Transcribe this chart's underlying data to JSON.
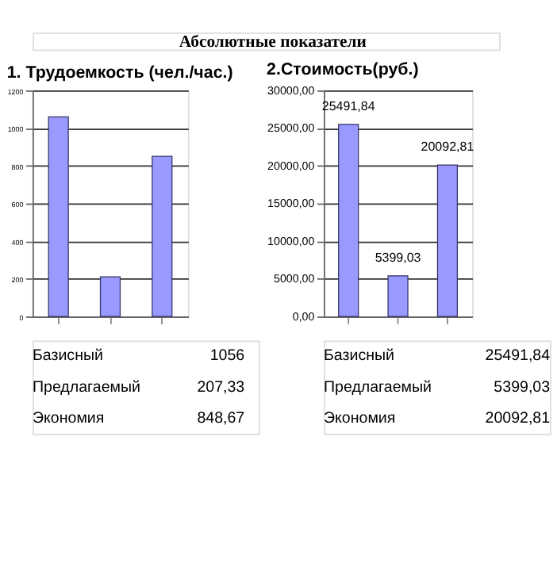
{
  "chart_data": [
    {
      "type": "bar",
      "title": "1. Трудоемкость (чел./час.)",
      "annotations": [
        "Абсолютные показатели"
      ],
      "categories": [
        null,
        null,
        null
      ],
      "values": [
        1060,
        210,
        850
      ],
      "color": "#9999ff",
      "ylim": [
        0,
        1200
      ],
      "yticks": [
        0,
        200,
        400,
        600,
        800,
        1000,
        1200
      ],
      "grid": "y"
    },
    {
      "type": "bar",
      "title": "2.Стоимость(руб.)",
      "categories": [
        null,
        null,
        null
      ],
      "values": [
        25491.84,
        5399.03,
        20092.81
      ],
      "value_labels": [
        "25491,84",
        "5399,03",
        "20092,81"
      ],
      "color": "#9999ff",
      "ylim": [
        0,
        30000
      ],
      "yticks": [
        {
          "value": 0,
          "label": "0,00"
        },
        {
          "value": 5000,
          "label": "5000,00"
        },
        {
          "value": 10000,
          "label": "10000,00"
        },
        {
          "value": 15000,
          "label": "15000,00"
        },
        {
          "value": 20000,
          "label": "20000,00"
        },
        {
          "value": 25000,
          "label": "25000,00"
        },
        {
          "value": 30000,
          "label": "30000,00"
        }
      ],
      "grid": "y"
    },
    {
      "type": "other",
      "annotations": [
        "Базисный",
        "1056",
        "Предлагаемый",
        "207,33",
        "Экономия",
        "848,67"
      ]
    },
    {
      "type": "other",
      "annotations": [
        "Базисный",
        "25491,84",
        "Предлагаемый",
        "5399,03",
        "Экономия",
        "20092,81"
      ]
    }
  ]
}
